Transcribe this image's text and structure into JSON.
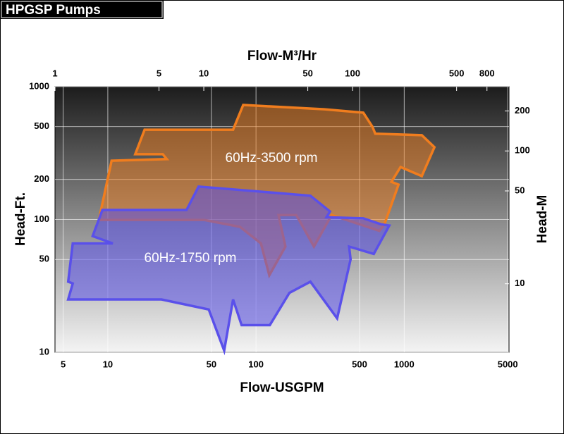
{
  "chart_data": {
    "type": "area",
    "title": "HPGSP Pumps",
    "xlabel": "Flow-USGPM",
    "ylabel": "Head-Ft.",
    "x2label": "Flow-M³/Hr",
    "y2label": "Head-M",
    "log_scale": true,
    "grid": true,
    "xlim": [
      4.4,
      5100
    ],
    "xticks": [
      5,
      10,
      50,
      100,
      500,
      1000,
      5000
    ],
    "ylim": [
      10,
      1000
    ],
    "yticks": [
      10,
      50,
      100,
      200,
      500,
      1000
    ],
    "x2lim": [
      1,
      1125
    ],
    "x2ticks": [
      1,
      5,
      10,
      50,
      100,
      500,
      800
    ],
    "y2lim": [
      3.048,
      304.8
    ],
    "y2ticks": [
      10,
      50,
      100,
      200
    ],
    "series": [
      {
        "name": "60Hz-3500 rpm",
        "color": "#f07d1e",
        "x": [
          8.7,
          10.6,
          25,
          23.5,
          15.3,
          17.7,
          70,
          82,
          290,
          530,
          611,
          638,
          1315,
          1600,
          1315,
          946,
          820,
          916,
          736,
          681,
          324,
          246,
          187,
          142,
          158,
          123,
          108,
          78,
          45
        ],
        "values": [
          99,
          277,
          285,
          310,
          310,
          474,
          474,
          728,
          676,
          637,
          499,
          442,
          431,
          350,
          212,
          248,
          192,
          183,
          92,
          82,
          108,
          62.5,
          108,
          108,
          62.5,
          38,
          66,
          88,
          99
        ]
      },
      {
        "name": "60Hz-1750 rpm",
        "color": "#5a50ea",
        "x": [
          5.4,
          5.8,
          5.4,
          5.8,
          10.8,
          7.9,
          9.2,
          34,
          41,
          233,
          316,
          299,
          530,
          697,
          794,
          624,
          425,
          435,
          353,
          233,
          168,
          124,
          80,
          70,
          61,
          48,
          23
        ],
        "values": [
          25,
          33,
          34,
          66,
          66,
          75,
          118,
          118,
          177,
          151,
          115,
          104,
          102,
          92,
          90,
          55,
          62.5,
          50,
          18,
          34,
          28,
          16,
          16,
          25,
          10.3,
          21,
          25
        ]
      }
    ]
  }
}
